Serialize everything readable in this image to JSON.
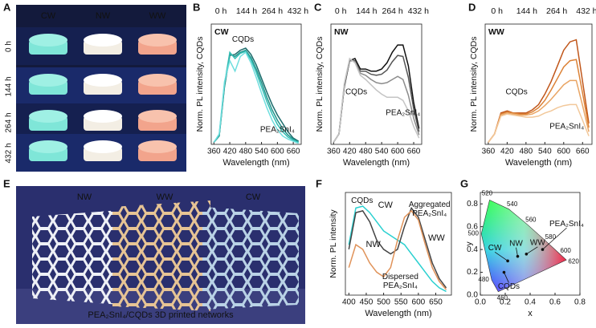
{
  "panel_labels": [
    "A",
    "B",
    "C",
    "D",
    "E",
    "F",
    "G"
  ],
  "photo_a": {
    "columns": [
      "CW",
      "NW",
      "WW"
    ],
    "rows": [
      "0 h",
      "144 h",
      "264 h",
      "432 h"
    ]
  },
  "photo_e": {
    "labels": [
      "NW",
      "WW",
      "CW"
    ],
    "caption": "PEA₂SnI₄/CQDs 3D printed networks"
  },
  "chart_data": [
    {
      "type": "line",
      "title": "CW",
      "x_label": "Wavelength (nm)",
      "y_label": "Norm. PL intensity, CQDs",
      "x": [
        360,
        380,
        400,
        420,
        440,
        460,
        480,
        500,
        520,
        540,
        560,
        580,
        600,
        620,
        640,
        660,
        680
      ],
      "xlim": [
        350,
        690
      ],
      "xticks": [
        360,
        420,
        480,
        540,
        600,
        660
      ],
      "ylim": [
        0,
        1.15
      ],
      "legend": "top",
      "series": [
        {
          "name": "0 h",
          "color": "#1b6b6b",
          "values": [
            0.02,
            0.08,
            0.55,
            0.85,
            0.86,
            0.9,
            0.92,
            0.86,
            0.76,
            0.63,
            0.5,
            0.38,
            0.28,
            0.2,
            0.12,
            0.06,
            0.03
          ]
        },
        {
          "name": "144 h",
          "color": "#23958c",
          "values": [
            0.02,
            0.08,
            0.56,
            0.86,
            0.84,
            0.88,
            0.9,
            0.83,
            0.72,
            0.59,
            0.45,
            0.33,
            0.23,
            0.15,
            0.09,
            0.05,
            0.02
          ]
        },
        {
          "name": "264 h",
          "color": "#33bdb4",
          "values": [
            0.02,
            0.09,
            0.58,
            0.88,
            0.82,
            0.87,
            0.89,
            0.81,
            0.69,
            0.55,
            0.41,
            0.29,
            0.19,
            0.12,
            0.07,
            0.04,
            0.02
          ]
        },
        {
          "name": "432 h",
          "color": "#6fdede",
          "values": [
            0.02,
            0.1,
            0.6,
            0.8,
            0.7,
            0.84,
            0.88,
            0.78,
            0.64,
            0.49,
            0.35,
            0.23,
            0.14,
            0.08,
            0.05,
            0.03,
            0.01
          ]
        }
      ],
      "annotations": [
        {
          "text": "CQDs",
          "x": 470,
          "y": 1.0
        },
        {
          "text": "PEA₂SnI₄",
          "x": 600,
          "y": 0.14
        }
      ]
    },
    {
      "type": "line",
      "title": "NW",
      "x_label": "Wavelength (nm)",
      "y_label": "Norm. PL intensity, CQDs",
      "x": [
        360,
        380,
        400,
        420,
        440,
        460,
        480,
        500,
        520,
        540,
        560,
        580,
        600,
        620,
        640,
        660,
        680
      ],
      "xlim": [
        350,
        690
      ],
      "xticks": [
        360,
        420,
        480,
        540,
        600,
        660
      ],
      "ylim": [
        0,
        1.15
      ],
      "legend": "top",
      "series": [
        {
          "name": "0 h",
          "color": "#111111",
          "values": [
            0.02,
            0.1,
            0.55,
            0.8,
            0.82,
            0.72,
            0.72,
            0.7,
            0.7,
            0.72,
            0.78,
            0.88,
            0.95,
            0.95,
            0.75,
            0.4,
            0.15
          ]
        },
        {
          "name": "144 h",
          "color": "#555555",
          "values": [
            0.02,
            0.1,
            0.56,
            0.8,
            0.8,
            0.7,
            0.7,
            0.67,
            0.66,
            0.67,
            0.71,
            0.79,
            0.85,
            0.84,
            0.64,
            0.34,
            0.12
          ]
        },
        {
          "name": "264 h",
          "color": "#8c8c8c",
          "values": [
            0.02,
            0.1,
            0.57,
            0.81,
            0.79,
            0.68,
            0.66,
            0.62,
            0.59,
            0.58,
            0.59,
            0.62,
            0.65,
            0.62,
            0.47,
            0.25,
            0.09
          ]
        },
        {
          "name": "432 h",
          "color": "#c4c4c4",
          "values": [
            0.02,
            0.1,
            0.58,
            0.82,
            0.78,
            0.66,
            0.62,
            0.57,
            0.52,
            0.48,
            0.45,
            0.45,
            0.45,
            0.42,
            0.32,
            0.17,
            0.06
          ]
        }
      ],
      "annotations": [
        {
          "text": "CQDs",
          "x": 445,
          "y": 0.5
        },
        {
          "text": "PEA₂SnI₄",
          "x": 620,
          "y": 0.3
        }
      ]
    },
    {
      "type": "line",
      "title": "WW",
      "x_label": "Wavelength (nm)",
      "y_label": "Norm. PL intensity, CQDs",
      "x": [
        360,
        380,
        400,
        420,
        440,
        460,
        480,
        500,
        520,
        540,
        560,
        580,
        600,
        620,
        640,
        660,
        680
      ],
      "xlim": [
        350,
        690
      ],
      "xticks": [
        360,
        420,
        480,
        540,
        600,
        660
      ],
      "ylim": [
        0,
        1.15
      ],
      "legend": "top",
      "series": [
        {
          "name": "0 h",
          "color": "#c0561a",
          "values": [
            0.02,
            0.1,
            0.3,
            0.32,
            0.3,
            0.3,
            0.3,
            0.33,
            0.38,
            0.48,
            0.6,
            0.75,
            0.9,
            0.98,
            1.0,
            0.6,
            0.2
          ]
        },
        {
          "name": "144 h",
          "color": "#dc8236",
          "values": [
            0.02,
            0.1,
            0.29,
            0.31,
            0.3,
            0.29,
            0.29,
            0.31,
            0.35,
            0.42,
            0.52,
            0.63,
            0.74,
            0.8,
            0.81,
            0.49,
            0.16
          ]
        },
        {
          "name": "264 h",
          "color": "#e9a564",
          "values": [
            0.02,
            0.1,
            0.28,
            0.3,
            0.29,
            0.28,
            0.28,
            0.29,
            0.32,
            0.37,
            0.43,
            0.5,
            0.57,
            0.61,
            0.61,
            0.37,
            0.12
          ]
        },
        {
          "name": "432 h",
          "color": "#f2c89a",
          "values": [
            0.02,
            0.1,
            0.27,
            0.29,
            0.28,
            0.27,
            0.26,
            0.26,
            0.27,
            0.3,
            0.32,
            0.35,
            0.37,
            0.38,
            0.38,
            0.23,
            0.08
          ]
        }
      ],
      "annotations": [
        {
          "text": "CQDs",
          "x": 450,
          "y": 0.5
        },
        {
          "text": "PEA₂SnI₄",
          "x": 610,
          "y": 0.17
        }
      ]
    },
    {
      "type": "line",
      "x_label": "Wavelength (nm)",
      "y_label": "Norm. PL intensity",
      "x": [
        400,
        420,
        440,
        460,
        480,
        500,
        520,
        540,
        560,
        580,
        600,
        620,
        640,
        660,
        680
      ],
      "xlim": [
        390,
        695
      ],
      "xticks": [
        400,
        450,
        500,
        550,
        600,
        650
      ],
      "ylim": [
        0,
        1.12
      ],
      "legend": "inline",
      "series": [
        {
          "name": "CW",
          "color": "#2ad0d0",
          "label_x": 505,
          "label_y": 0.98,
          "values": [
            0.55,
            0.95,
            0.97,
            0.9,
            0.8,
            0.7,
            0.65,
            0.6,
            0.55,
            0.45,
            0.35,
            0.25,
            0.15,
            0.08,
            0.04
          ]
        },
        {
          "name": "NW",
          "color": "#444444",
          "label_x": 470,
          "label_y": 0.55,
          "values": [
            0.5,
            0.9,
            0.92,
            0.8,
            0.6,
            0.5,
            0.45,
            0.5,
            0.75,
            0.95,
            0.85,
            0.6,
            0.35,
            0.18,
            0.08
          ]
        },
        {
          "name": "WW",
          "color": "#e0935a",
          "label_x": 652,
          "label_y": 0.62,
          "values": [
            0.3,
            0.55,
            0.5,
            0.35,
            0.25,
            0.2,
            0.3,
            0.6,
            0.85,
            0.92,
            0.82,
            0.55,
            0.3,
            0.15,
            0.06
          ]
        }
      ],
      "annotations": [
        {
          "text": "CQDs",
          "x": 438,
          "y": 1.03
        },
        {
          "text": "Aggregated\nPEA₂SnI₄",
          "x": 632,
          "y": 0.99
        },
        {
          "text": "Dispersed\nPEA₂SnI₄",
          "x": 548,
          "y": 0.2
        }
      ]
    },
    {
      "type": "scatter",
      "x_label": "x",
      "y_label": "y",
      "xlim": [
        0,
        0.8
      ],
      "ylim": [
        0,
        0.9
      ],
      "xticks": [
        {
          "value": 0,
          "label": "0.0"
        },
        0.2,
        0.4,
        0.6,
        0.8
      ],
      "yticks": [
        {
          "value": 0,
          "label": "0.0"
        },
        0.2,
        0.4,
        0.6,
        0.8
      ],
      "locus": {
        "labels": [
          460,
          480,
          500,
          520,
          540,
          560,
          580,
          600,
          620
        ],
        "x": [
          0.144,
          0.091,
          0.008,
          0.074,
          0.23,
          0.373,
          0.512,
          0.627,
          0.691
        ],
        "y": [
          0.03,
          0.133,
          0.538,
          0.834,
          0.754,
          0.624,
          0.487,
          0.373,
          0.308
        ]
      },
      "point_labels": [
        "CW",
        "NW",
        "WW",
        "CQDs",
        "PEA₂SnI₄"
      ],
      "x": [
        0.22,
        0.3,
        0.37,
        0.19,
        0.5
      ],
      "values": [
        0.3,
        0.34,
        0.36,
        0.2,
        0.4
      ]
    }
  ]
}
